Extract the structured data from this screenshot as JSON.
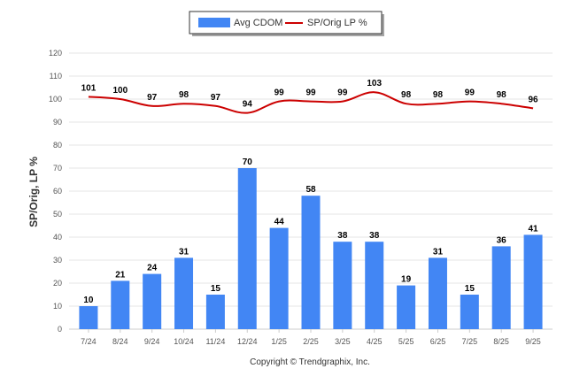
{
  "chart_data": {
    "type": "bar",
    "categories": [
      "7/24",
      "8/24",
      "9/24",
      "10/24",
      "11/24",
      "12/24",
      "1/25",
      "2/25",
      "3/25",
      "4/25",
      "5/25",
      "6/25",
      "7/25",
      "8/25",
      "9/25"
    ],
    "series": [
      {
        "name": "Avg CDOM",
        "kind": "bar",
        "color": "#4286f4",
        "values": [
          10,
          21,
          24,
          31,
          15,
          70,
          44,
          58,
          38,
          38,
          19,
          31,
          15,
          36,
          41
        ]
      },
      {
        "name": "SP/Orig LP %",
        "kind": "line",
        "color": "#cc0000",
        "values": [
          101,
          100,
          97,
          98,
          97,
          94,
          99,
          99,
          99,
          103,
          98,
          98,
          99,
          98,
          96
        ]
      }
    ],
    "ylabel": "SP/Orig, LP %",
    "ylim": [
      0,
      120
    ],
    "yticks": [
      0,
      10,
      20,
      30,
      40,
      50,
      60,
      70,
      80,
      90,
      100,
      110,
      120
    ],
    "legend_position": "top-center",
    "grid": true
  },
  "footer": "Copyright © Trendgraphix, Inc."
}
